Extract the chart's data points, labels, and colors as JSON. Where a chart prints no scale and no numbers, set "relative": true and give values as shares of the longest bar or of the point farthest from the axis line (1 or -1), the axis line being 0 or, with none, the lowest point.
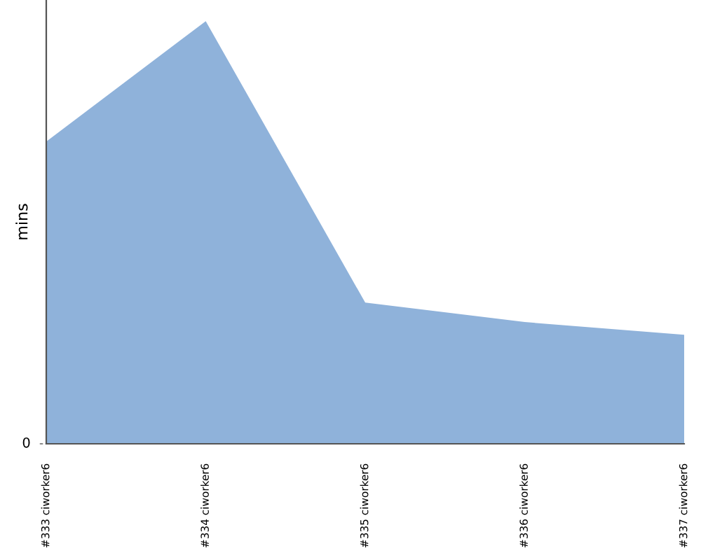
{
  "chart_data": {
    "type": "area",
    "ylabel": "mins",
    "relative": true,
    "categories": [
      "#333 ciworker6",
      "#334 ciworker6",
      "#335 ciworker6",
      "#336 ciworker6",
      "#337 ciworker6"
    ],
    "series": [
      {
        "color": "#8fb2da",
        "values": [
          0.715,
          1,
          0.334,
          0.288,
          0.258
        ]
      }
    ],
    "annotations": [
      "0"
    ],
    "grid": false
  }
}
